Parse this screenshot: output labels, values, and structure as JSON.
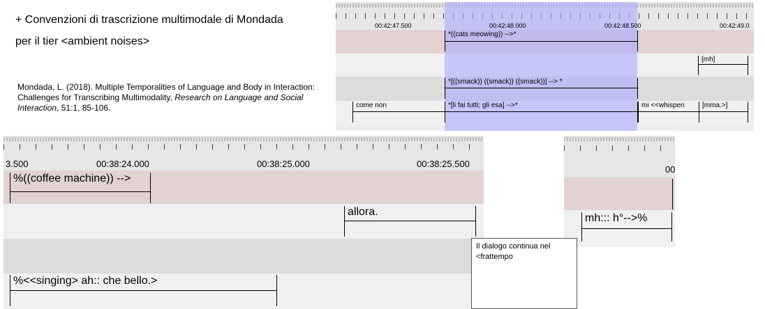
{
  "slide": {
    "title_lines": [
      "+ Convenzioni di trascrizione multimodale di Mondada",
      "per il tier <ambient noises>"
    ],
    "citation": {
      "text": "Mondada, L. (2018). Multiple Temporalities of Language and Body in Interaction: Challenges for Transcribing Multimodality, ",
      "journal": "Research on Language and Social Interaction",
      "details": ", 51:1, 85-106."
    },
    "note": [
      "Il dialogo continua nel",
      "<frattempo"
    ]
  },
  "screenshots": [
    {
      "ruler": [
        "00:42:47.500",
        "00:42:48.000",
        "00:42:48.500",
        "00:42:49.0"
      ],
      "annotations": [
        "*((cats meowing)) -->*",
        "[mh]",
        "*[((smack)) ((smack)) ((smack))] --> *",
        "come non",
        "*[li fai tutti; gli esa] -->*",
        "mi <<whispen",
        "[mma.>]"
      ]
    },
    {
      "ruler": [
        "3.500",
        "00:38:24.000",
        "00:38:25.000",
        "00:38:25.500"
      ],
      "annotations": [
        "%((coffee machine)) -->",
        "allora.",
        "%<<singing> ah:: che bello.>"
      ]
    },
    {
      "ruler": [
        "00"
      ],
      "annotations": [
        "mh::: h°-->%"
      ]
    }
  ]
}
